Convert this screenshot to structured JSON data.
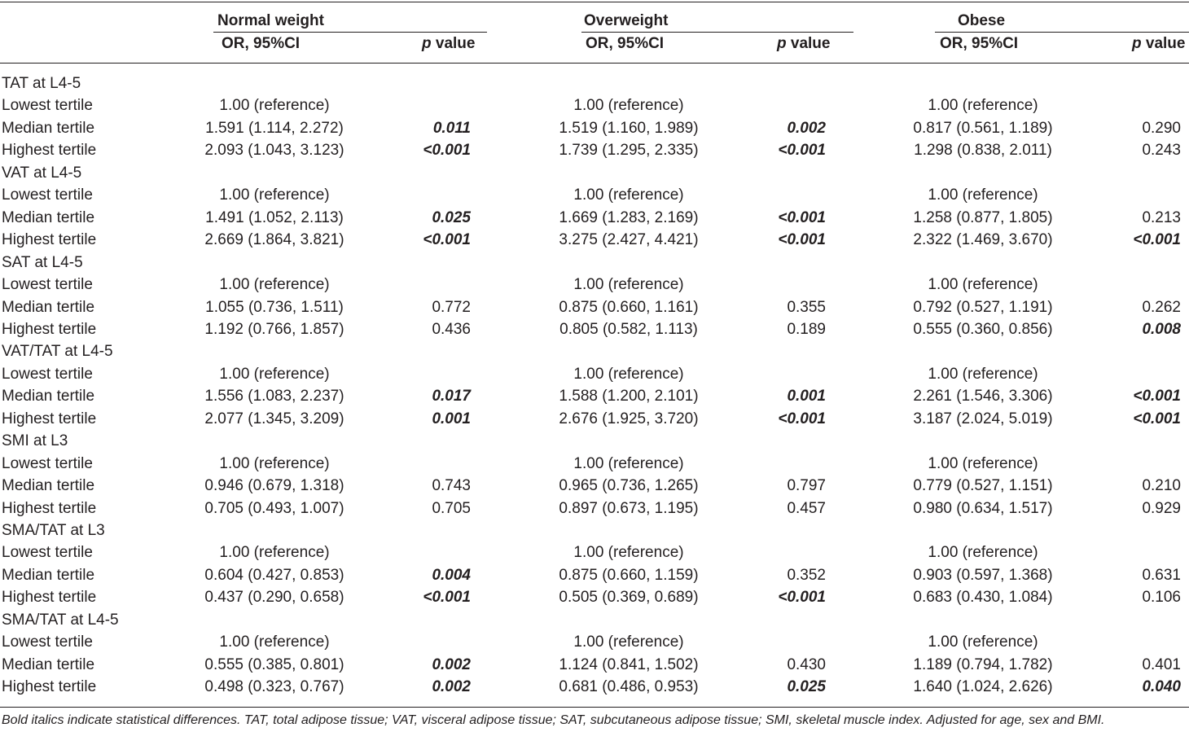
{
  "header": {
    "groups": [
      "Normal weight",
      "Overweight",
      "Obese"
    ],
    "or_label": "OR, 95%CI",
    "p_label_italic": "p",
    "p_label_rest": " value"
  },
  "sections": [
    {
      "title": "TAT at L4-5",
      "rows": [
        {
          "label": "Lowest tertile",
          "cells": [
            [
              "1.00 (reference)",
              ""
            ],
            [
              "1.00 (reference)",
              ""
            ],
            [
              "1.00 (reference)",
              ""
            ]
          ]
        },
        {
          "label": "Median tertile",
          "cells": [
            [
              "1.591 (1.114, 2.272)",
              "0.011"
            ],
            [
              "1.519 (1.160, 1.989)",
              "0.002"
            ],
            [
              "0.817 (0.561, 1.189)",
              "0.290"
            ]
          ]
        },
        {
          "label": "Highest tertile",
          "cells": [
            [
              "2.093 (1.043, 3.123)",
              "<0.001"
            ],
            [
              "1.739 (1.295, 2.335)",
              "<0.001"
            ],
            [
              "1.298 (0.838, 2.011)",
              "0.243"
            ]
          ]
        }
      ]
    },
    {
      "title": "VAT at L4-5",
      "rows": [
        {
          "label": "Lowest tertile",
          "cells": [
            [
              "1.00 (reference)",
              ""
            ],
            [
              "1.00 (reference)",
              ""
            ],
            [
              "1.00 (reference)",
              ""
            ]
          ]
        },
        {
          "label": "Median tertile",
          "cells": [
            [
              "1.491 (1.052, 2.113)",
              "0.025"
            ],
            [
              "1.669 (1.283, 2.169)",
              "<0.001"
            ],
            [
              "1.258 (0.877, 1.805)",
              "0.213"
            ]
          ]
        },
        {
          "label": "Highest tertile",
          "cells": [
            [
              "2.669 (1.864, 3.821)",
              "<0.001"
            ],
            [
              "3.275 (2.427, 4.421)",
              "<0.001"
            ],
            [
              "2.322 (1.469, 3.670)",
              "<0.001"
            ]
          ]
        }
      ]
    },
    {
      "title": "SAT at L4-5",
      "rows": [
        {
          "label": "Lowest tertile",
          "cells": [
            [
              "1.00 (reference)",
              ""
            ],
            [
              "1.00 (reference)",
              ""
            ],
            [
              "1.00 (reference)",
              ""
            ]
          ]
        },
        {
          "label": "Median tertile",
          "cells": [
            [
              "1.055 (0.736, 1.511)",
              "0.772"
            ],
            [
              "0.875 (0.660, 1.161)",
              "0.355"
            ],
            [
              "0.792 (0.527, 1.191)",
              "0.262"
            ]
          ]
        },
        {
          "label": "Highest tertile",
          "cells": [
            [
              "1.192 (0.766, 1.857)",
              "0.436"
            ],
            [
              "0.805 (0.582, 1.113)",
              "0.189"
            ],
            [
              "0.555 (0.360, 0.856)",
              "0.008"
            ]
          ]
        }
      ]
    },
    {
      "title": "VAT/TAT at L4-5",
      "rows": [
        {
          "label": "Lowest tertile",
          "cells": [
            [
              "1.00 (reference)",
              ""
            ],
            [
              "1.00 (reference)",
              ""
            ],
            [
              "1.00 (reference)",
              ""
            ]
          ]
        },
        {
          "label": "Median tertile",
          "cells": [
            [
              "1.556 (1.083, 2.237)",
              "0.017"
            ],
            [
              "1.588 (1.200, 2.101)",
              "0.001"
            ],
            [
              "2.261 (1.546, 3.306)",
              "<0.001"
            ]
          ]
        },
        {
          "label": "Highest tertile",
          "cells": [
            [
              "2.077 (1.345, 3.209)",
              "0.001"
            ],
            [
              "2.676 (1.925, 3.720)",
              "<0.001"
            ],
            [
              "3.187 (2.024, 5.019)",
              "<0.001"
            ]
          ]
        }
      ]
    },
    {
      "title": "SMI at L3",
      "rows": [
        {
          "label": "Lowest tertile",
          "cells": [
            [
              "1.00 (reference)",
              ""
            ],
            [
              "1.00 (reference)",
              ""
            ],
            [
              "1.00 (reference)",
              ""
            ]
          ]
        },
        {
          "label": "Median tertile",
          "cells": [
            [
              "0.946 (0.679, 1.318)",
              "0.743"
            ],
            [
              "0.965 (0.736, 1.265)",
              "0.797"
            ],
            [
              "0.779 (0.527, 1.151)",
              "0.210"
            ]
          ]
        },
        {
          "label": "Highest tertile",
          "cells": [
            [
              "0.705 (0.493, 1.007)",
              "0.705"
            ],
            [
              "0.897 (0.673, 1.195)",
              "0.457"
            ],
            [
              "0.980 (0.634, 1.517)",
              "0.929"
            ]
          ]
        }
      ]
    },
    {
      "title": "SMA/TAT at L3",
      "rows": [
        {
          "label": "Lowest tertile",
          "cells": [
            [
              "1.00 (reference)",
              ""
            ],
            [
              "1.00 (reference)",
              ""
            ],
            [
              "1.00 (reference)",
              ""
            ]
          ]
        },
        {
          "label": "Median tertile",
          "cells": [
            [
              "0.604 (0.427, 0.853)",
              "0.004"
            ],
            [
              "0.875 (0.660, 1.159)",
              "0.352"
            ],
            [
              "0.903 (0.597, 1.368)",
              "0.631"
            ]
          ]
        },
        {
          "label": "Highest tertile",
          "cells": [
            [
              "0.437 (0.290, 0.658)",
              "<0.001"
            ],
            [
              "0.505 (0.369, 0.689)",
              "<0.001"
            ],
            [
              "0.683 (0.430, 1.084)",
              "0.106"
            ]
          ]
        }
      ]
    },
    {
      "title": "SMA/TAT at L4-5",
      "rows": [
        {
          "label": "Lowest tertile",
          "cells": [
            [
              "1.00 (reference)",
              ""
            ],
            [
              "1.00 (reference)",
              ""
            ],
            [
              "1.00 (reference)",
              ""
            ]
          ]
        },
        {
          "label": "Median tertile",
          "cells": [
            [
              "0.555 (0.385, 0.801)",
              "0.002"
            ],
            [
              "1.124 (0.841, 1.502)",
              "0.430"
            ],
            [
              "1.189 (0.794, 1.782)",
              "0.401"
            ]
          ]
        },
        {
          "label": "Highest tertile",
          "cells": [
            [
              "0.498 (0.323, 0.767)",
              "0.002"
            ],
            [
              "0.681 (0.486, 0.953)",
              "0.025"
            ],
            [
              "1.640 (1.024, 2.626)",
              "0.040"
            ]
          ]
        }
      ]
    }
  ],
  "significant": [
    [
      [
        0,
        1,
        0
      ],
      [
        0,
        1,
        1
      ],
      [
        0,
        2,
        0
      ],
      [
        0,
        2,
        1
      ]
    ],
    [
      [
        1,
        1,
        0
      ],
      [
        1,
        1,
        1
      ],
      [
        1,
        2,
        0
      ],
      [
        1,
        2,
        1
      ],
      [
        1,
        2,
        2
      ]
    ],
    [
      [
        2,
        2,
        2
      ]
    ],
    [
      [
        3,
        1,
        0
      ],
      [
        3,
        1,
        1
      ],
      [
        3,
        1,
        2
      ],
      [
        3,
        2,
        0
      ],
      [
        3,
        2,
        1
      ],
      [
        3,
        2,
        2
      ]
    ],
    [],
    [
      [
        5,
        1,
        0
      ],
      [
        5,
        2,
        0
      ],
      [
        5,
        2,
        1
      ]
    ],
    [
      [
        6,
        1,
        0
      ],
      [
        6,
        2,
        0
      ],
      [
        6,
        2,
        1
      ],
      [
        6,
        2,
        2
      ]
    ]
  ],
  "footnote": "Bold italics indicate statistical differences. TAT, total adipose tissue; VAT, visceral adipose tissue; SAT, subcutaneous adipose tissue; SMI, skeletal muscle index. Adjusted for age, sex and BMI."
}
